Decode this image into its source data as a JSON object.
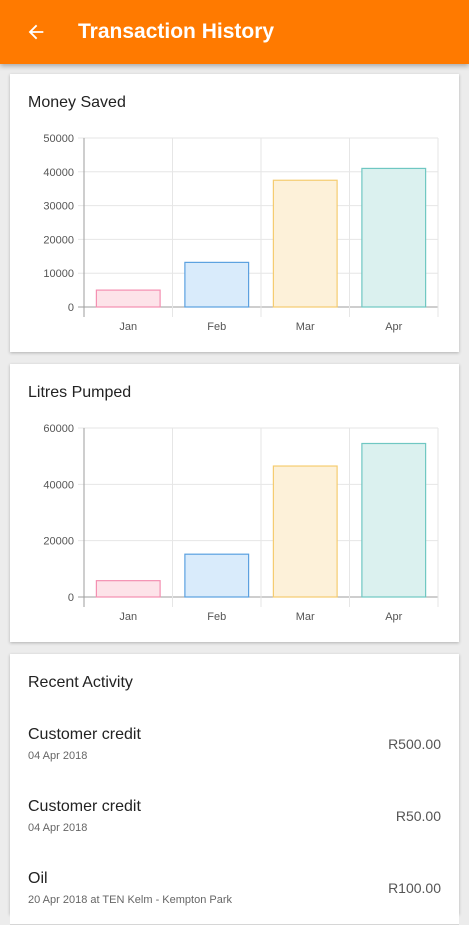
{
  "header": {
    "title": "Transaction History",
    "back_icon": "arrow-left-icon",
    "background": "#ff7a00"
  },
  "chart_data": [
    {
      "type": "bar",
      "title": "Money Saved",
      "categories": [
        "Jan",
        "Feb",
        "Mar",
        "Apr"
      ],
      "values": [
        5000,
        13200,
        37500,
        41000
      ],
      "ylim": [
        0,
        50000
      ],
      "yticks": [
        0,
        10000,
        20000,
        30000,
        40000,
        50000
      ],
      "grid": true,
      "colors": {
        "fills": [
          "#fde3e9",
          "#d9ebfb",
          "#fdf1d9",
          "#dbf1ef"
        ],
        "strokes": [
          "#f48fb1",
          "#5aa0e0",
          "#f5cc70",
          "#6fc7c2"
        ]
      }
    },
    {
      "type": "bar",
      "title": "Litres Pumped",
      "categories": [
        "Jan",
        "Feb",
        "Mar",
        "Apr"
      ],
      "values": [
        5800,
        15200,
        46500,
        54500
      ],
      "ylim": [
        0,
        60000
      ],
      "yticks": [
        0,
        20000,
        40000,
        60000
      ],
      "grid": true,
      "colors": {
        "fills": [
          "#fde3e9",
          "#d9ebfb",
          "#fdf1d9",
          "#dbf1ef"
        ],
        "strokes": [
          "#f48fb1",
          "#5aa0e0",
          "#f5cc70",
          "#6fc7c2"
        ]
      }
    }
  ],
  "activity": {
    "title": "Recent Activity",
    "items": [
      {
        "title": "Customer credit",
        "date": "04 Apr 2018",
        "amount": "R500.00"
      },
      {
        "title": "Customer credit",
        "date": "04 Apr 2018",
        "amount": "R50.00"
      },
      {
        "title": "Oil",
        "date": "20 Apr 2018 at TEN Kelm - Kempton Park",
        "amount": "R100.00"
      }
    ]
  }
}
